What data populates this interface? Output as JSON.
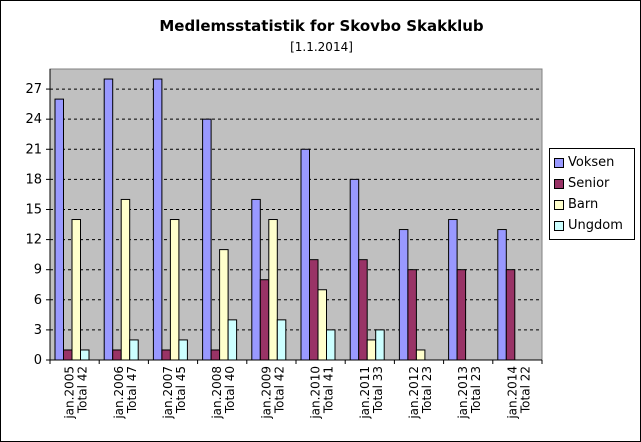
{
  "chart_data": {
    "type": "bar",
    "title": "Medlemsstatistik for Skovbo Skakklub",
    "subtitle": "[1.1.2014]",
    "categories": [
      [
        "jan.2005",
        "Total 42"
      ],
      [
        "jan.2006",
        "Total 47"
      ],
      [
        "jan.2007",
        "Total 45"
      ],
      [
        "jan.2008",
        "Total 40"
      ],
      [
        "jan.2009",
        "Total 42"
      ],
      [
        "jan.2010",
        "Total 41"
      ],
      [
        "jan.2011",
        "Total 33"
      ],
      [
        "jan.2012",
        "Total 23"
      ],
      [
        "jan.2013",
        "Total 23"
      ],
      [
        "jan.2014",
        "Total 22"
      ]
    ],
    "series": [
      {
        "name": "Voksen",
        "color": "#9999ff",
        "values": [
          26,
          28,
          28,
          24,
          16,
          21,
          18,
          13,
          14,
          13
        ]
      },
      {
        "name": "Senior",
        "color": "#993366",
        "values": [
          1,
          1,
          1,
          1,
          8,
          10,
          10,
          9,
          9,
          9
        ]
      },
      {
        "name": "Barn",
        "color": "#ffffcc",
        "values": [
          14,
          16,
          14,
          11,
          14,
          7,
          2,
          1,
          0,
          0
        ]
      },
      {
        "name": "Ungdom",
        "color": "#ccffff",
        "values": [
          1,
          2,
          2,
          4,
          4,
          3,
          3,
          0,
          0,
          0
        ]
      }
    ],
    "yticks": [
      0,
      3,
      6,
      9,
      12,
      15,
      18,
      21,
      24,
      27
    ],
    "ylim": [
      0,
      29
    ],
    "grid": "horizontal-dashed",
    "legend_position": "right",
    "plot_background": "#c0c0c0"
  }
}
